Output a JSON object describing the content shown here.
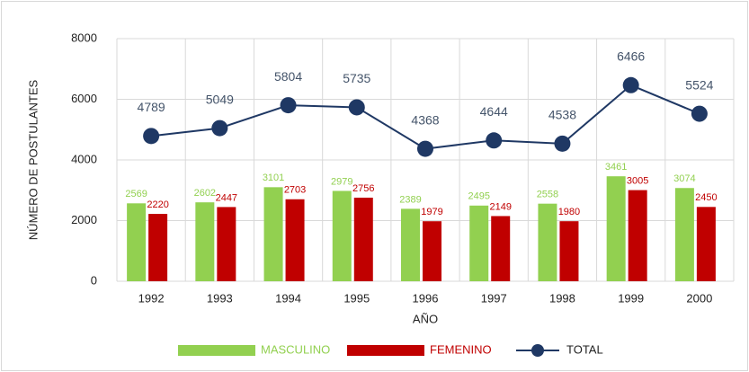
{
  "chart_data": {
    "type": "bar",
    "categories": [
      "1992",
      "1993",
      "1994",
      "1995",
      "1996",
      "1997",
      "1998",
      "1999",
      "2000"
    ],
    "series": [
      {
        "name": "MASCULINO",
        "type": "bar",
        "color": "#92d050",
        "values": [
          2569,
          2602,
          3101,
          2979,
          2389,
          2495,
          2558,
          3461,
          3074
        ]
      },
      {
        "name": "FEMENINO",
        "type": "bar",
        "color": "#c00000",
        "values": [
          2220,
          2447,
          2703,
          2756,
          1979,
          2149,
          1980,
          3005,
          2450
        ]
      },
      {
        "name": "TOTAL",
        "type": "line",
        "color": "#1f3864",
        "values": [
          4789,
          5049,
          5804,
          5735,
          4368,
          4644,
          4538,
          6466,
          5524
        ]
      }
    ],
    "ylim": [
      0,
      8000
    ],
    "yticks": [
      0,
      2000,
      4000,
      6000,
      8000
    ],
    "grid": true,
    "xlabel": "AÑO",
    "ylabel": "NÚMERO DE POSTULANTES",
    "legend": "bottom"
  }
}
